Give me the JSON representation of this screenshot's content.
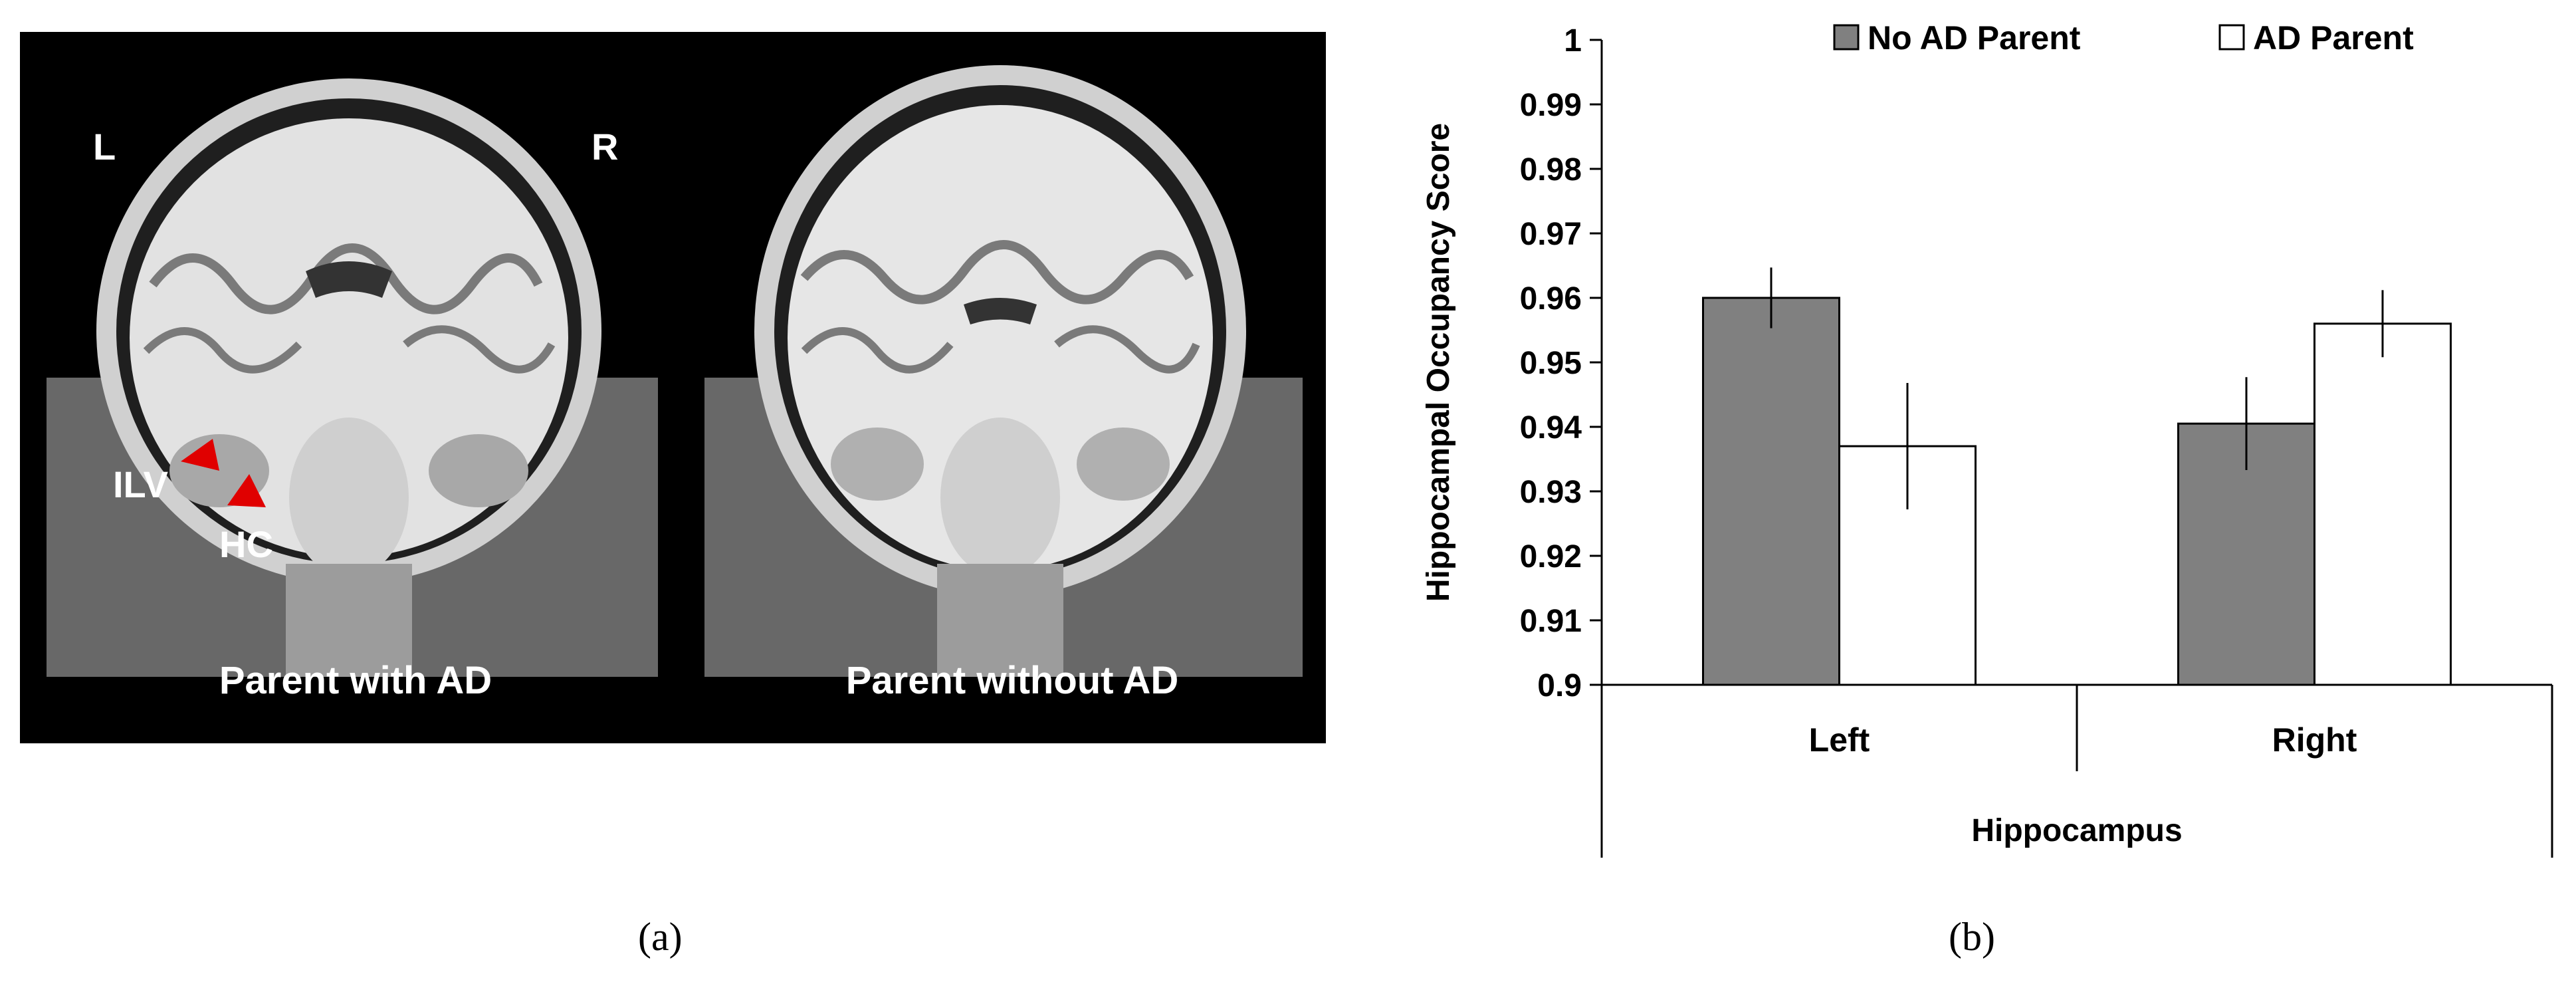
{
  "panel_a": {
    "left_side_label": "L",
    "right_side_label": "R",
    "ilv_label": "ILV",
    "hc_label": "HC",
    "caption_left": "Parent with AD",
    "caption_right": "Parent without AD",
    "sublabel": "(a)",
    "arrow_color": "#e00000"
  },
  "panel_b": {
    "sublabel": "(b)"
  },
  "chart_data": {
    "type": "bar",
    "title": "",
    "ylabel": "Hippocampal Occupancy Score",
    "xlabel": "Hippocampus",
    "categories": [
      "Left",
      "Right"
    ],
    "ylim": [
      0.9,
      1.0
    ],
    "yticks": [
      "0.9",
      "0.91",
      "0.92",
      "0.93",
      "0.94",
      "0.95",
      "0.96",
      "0.97",
      "0.98",
      "0.99",
      "1"
    ],
    "grid": false,
    "legend_position": "top",
    "series": [
      {
        "name": "No AD Parent",
        "values": [
          0.96,
          0.9405
        ],
        "errors": [
          0.0047,
          0.0072
        ],
        "color": "#808080"
      },
      {
        "name": "AD Parent",
        "values": [
          0.937,
          0.956
        ],
        "errors": [
          0.0098,
          0.0052
        ],
        "color": "#ffffff"
      }
    ]
  }
}
